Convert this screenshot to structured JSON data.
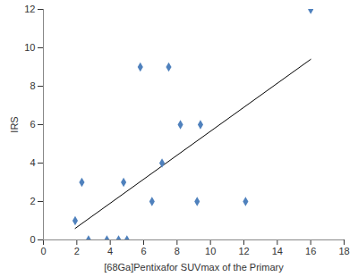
{
  "chart_data": {
    "type": "scatter",
    "x_label": "[68Ga]Pentixafor SUVmax of the Primary",
    "y_label": "IRS",
    "x": [
      1.9,
      2.3,
      2.7,
      3.8,
      4.5,
      4.8,
      5.0,
      5.8,
      6.5,
      7.1,
      7.5,
      8.2,
      9.2,
      9.4,
      12.1,
      16.0
    ],
    "values": [
      1,
      3,
      0,
      0,
      0,
      3,
      0,
      9,
      2,
      4,
      9,
      6,
      2,
      6,
      2,
      12
    ],
    "color": "#4f81bd",
    "marker": "diamond",
    "trend_line": {
      "x": [
        1.9,
        16.0
      ],
      "values": [
        0.6,
        9.4
      ],
      "color": "#000000",
      "line_style": "solid"
    },
    "xlim": [
      0,
      18
    ],
    "xticks": [
      0,
      2,
      4,
      6,
      8,
      10,
      12,
      14,
      16,
      18
    ],
    "ylim": [
      0,
      12
    ],
    "yticks": [
      0,
      2,
      4,
      6,
      8,
      10,
      12
    ],
    "grid": false
  }
}
